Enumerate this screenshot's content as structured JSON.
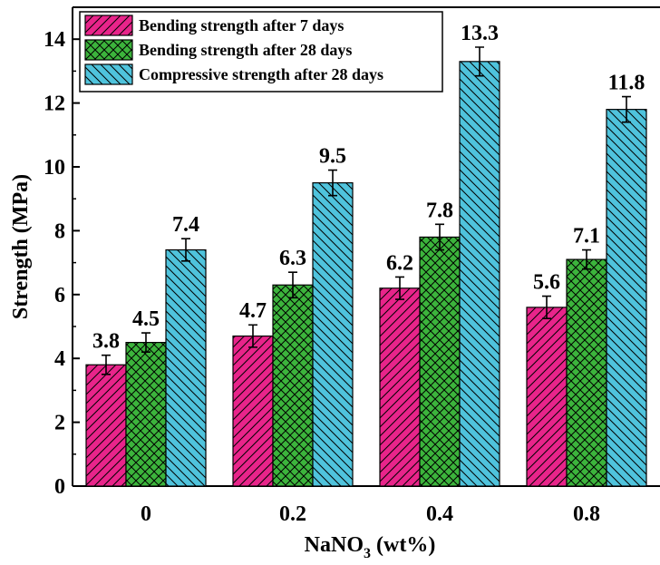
{
  "chart_data": {
    "type": "bar",
    "categories": [
      "0",
      "0.2",
      "0.4",
      "0.8"
    ],
    "series": [
      {
        "name": "Bending strength after 7 days",
        "values": [
          3.8,
          4.7,
          6.2,
          5.6
        ],
        "errors": [
          0.3,
          0.35,
          0.35,
          0.35
        ],
        "color": "#e8248a",
        "pattern": "diagonal-forward"
      },
      {
        "name": "Bending strength after 28 days",
        "values": [
          4.5,
          6.3,
          7.8,
          7.1
        ],
        "errors": [
          0.3,
          0.4,
          0.4,
          0.3
        ],
        "color": "#3cb43c",
        "pattern": "crosshatch"
      },
      {
        "name": "Compressive strength after 28 days",
        "values": [
          7.4,
          9.5,
          13.3,
          11.8
        ],
        "errors": [
          0.35,
          0.4,
          0.45,
          0.4
        ],
        "color": "#4fc3dc",
        "pattern": "diagonal-back"
      }
    ],
    "data_labels": [
      [
        "3.8",
        "4.7",
        "6.2",
        "5.6"
      ],
      [
        "4.5",
        "6.3",
        "7.8",
        "7.1"
      ],
      [
        "7.4",
        "9.5",
        "13.3",
        "11.8"
      ]
    ],
    "ylabel": "Strength (MPa)",
    "xlabel_main": "NaNO",
    "xlabel_sub": "3",
    "xlabel_tail": " (wt%)",
    "ylim": [
      0,
      15
    ],
    "yticks": [
      "0",
      "2",
      "4",
      "6",
      "8",
      "10",
      "12",
      "14"
    ],
    "legend_position": "top-left",
    "grid": false
  }
}
